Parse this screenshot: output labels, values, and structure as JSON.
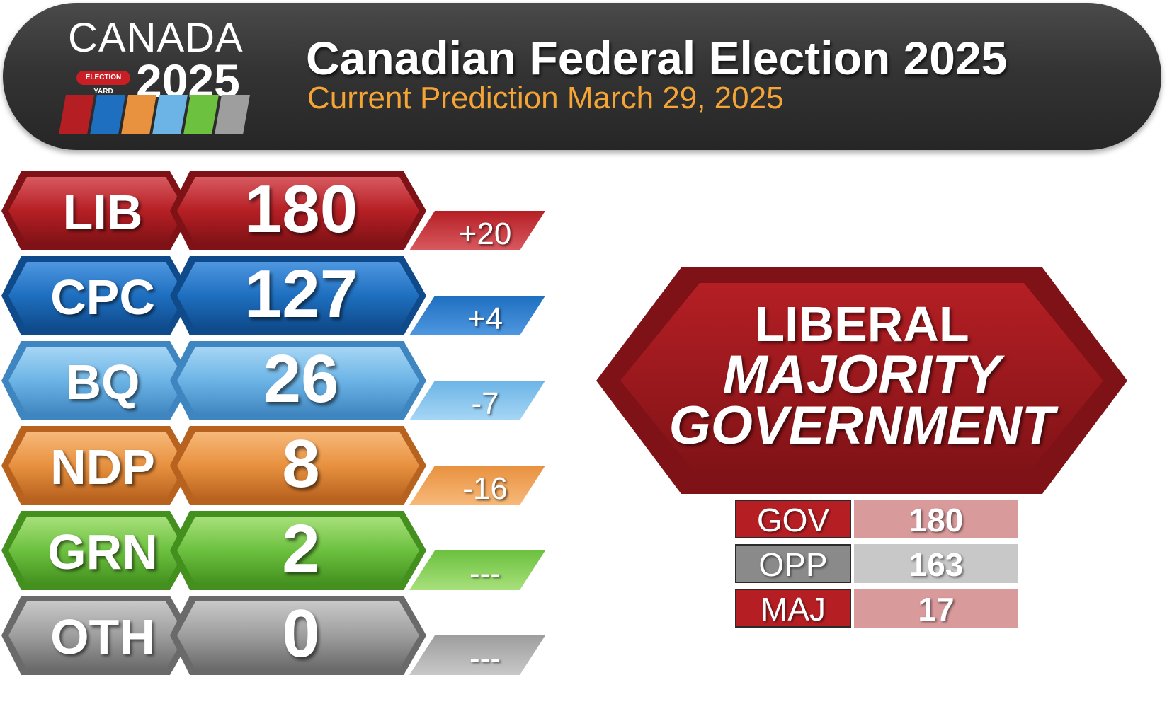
{
  "header": {
    "logo": {
      "canada": "CANADA",
      "year": "2025",
      "badge": "ELECTION YARD",
      "stripe_colors": [
        "#b51f24",
        "#1e6fc0",
        "#e8913f",
        "#6cb4e6",
        "#6cc13f",
        "#9e9e9e"
      ]
    },
    "title": "Canadian Federal Election 2025",
    "subtitle": "Current Prediction March 29, 2025"
  },
  "parties": [
    {
      "abbr": "LIB",
      "seats": "180",
      "change": "+20",
      "color": "#b51f24",
      "dark": "#7e1216",
      "light": "#d85a60"
    },
    {
      "abbr": "CPC",
      "seats": "127",
      "change": "+4",
      "color": "#1e6fc0",
      "dark": "#0f4a8a",
      "light": "#4f97e0"
    },
    {
      "abbr": "BQ",
      "seats": "26",
      "change": "-7",
      "color": "#6cb4e6",
      "dark": "#3f86c0",
      "light": "#a6d6f5"
    },
    {
      "abbr": "NDP",
      "seats": "8",
      "change": "-16",
      "color": "#e8913f",
      "dark": "#b8621f",
      "light": "#f7b97a"
    },
    {
      "abbr": "GRN",
      "seats": "2",
      "change": "---",
      "color": "#6cc13f",
      "dark": "#43901f",
      "light": "#a8e07c"
    },
    {
      "abbr": "OTH",
      "seats": "0",
      "change": "---",
      "color": "#9e9e9e",
      "dark": "#6a6a6a",
      "light": "#c8c8c8"
    }
  ],
  "result": {
    "line1": "LIBERAL",
    "line2": "MAJORITY",
    "line3": "GOVERNMENT",
    "color": "#b51f24",
    "dark": "#7e1216"
  },
  "seat_table": [
    {
      "label": "GOV",
      "value": "180",
      "label_color": "#b51f24",
      "value_color": "#d99a9c"
    },
    {
      "label": "OPP",
      "value": "163",
      "label_color": "#8a8a8a",
      "value_color": "#c8c8c8"
    },
    {
      "label": "MAJ",
      "value": "17",
      "label_color": "#b51f24",
      "value_color": "#d99a9c"
    }
  ]
}
